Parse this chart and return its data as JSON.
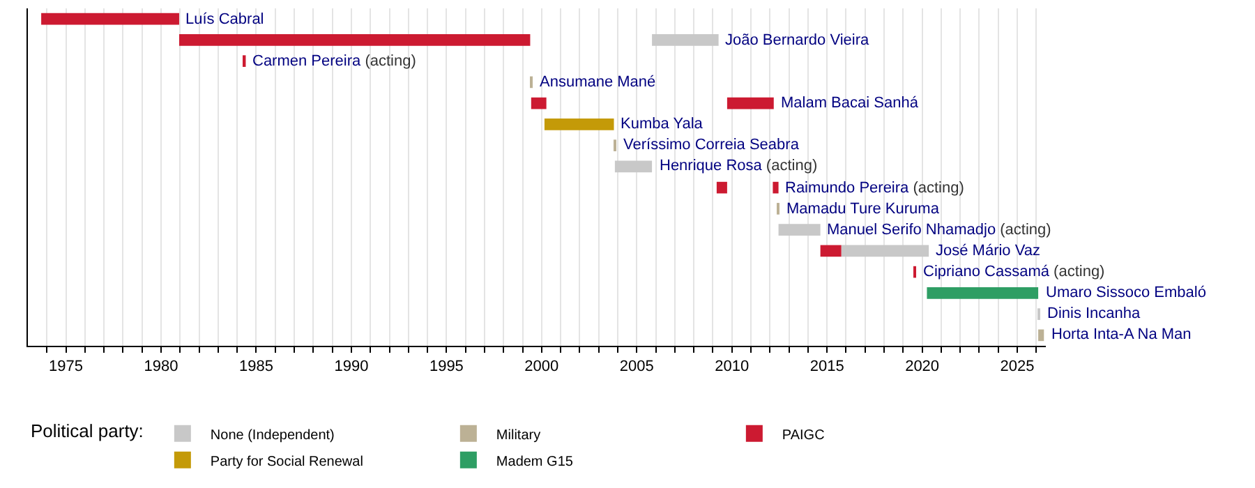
{
  "chart_data": {
    "type": "bar",
    "orientation": "horizontal",
    "categories": [
      "Luís Cabral",
      "João Bernardo Vieira",
      "Carmen Pereira (acting)",
      "Ansumane Mané",
      "Malam Bacai Sanhá",
      "Kumba Yala",
      "Veríssimo Correia Seabra",
      "Henrique Rosa (acting)",
      "Raimundo Pereira (acting)",
      "Mamadu Ture Kuruma",
      "Manuel Serifo Nhamadjo (acting)",
      "José Mário Vaz",
      "Cipriano Cassamá (acting)",
      "Umaro Sissoco Embaló",
      "Dinis Incanha",
      "Horta Inta-A Na Man"
    ],
    "series": [
      {
        "name": "None (Independent)",
        "color": "#c8c8c8",
        "base": [
          null,
          2005.8,
          null,
          null,
          null,
          null,
          null,
          2003.85,
          null,
          null,
          2012.45,
          2015.75,
          null,
          null,
          2026.1,
          null
        ],
        "values": [
          null,
          3.5,
          null,
          null,
          null,
          null,
          null,
          1.95,
          null,
          null,
          2.2,
          4.6,
          null,
          null,
          0.1,
          null
        ]
      },
      {
        "name": "Military",
        "color": "#bcb195",
        "base": [
          null,
          null,
          null,
          1999.4,
          null,
          null,
          2003.8,
          null,
          null,
          2012.4,
          null,
          null,
          null,
          null,
          null,
          2026.1
        ],
        "values": [
          null,
          null,
          null,
          0.1,
          null,
          null,
          0.1,
          null,
          null,
          0.1,
          null,
          null,
          null,
          null,
          null,
          0.3
        ]
      },
      {
        "name": "PAIGC",
        "color": "#cc1a31",
        "base": [
          1973.7,
          1980.95,
          1984.35,
          null,
          1999.45,
          null,
          null,
          null,
          2009.2,
          null,
          null,
          2014.65,
          2019.55,
          null,
          null,
          null
        ],
        "values": [
          7.25,
          18.45,
          0.1,
          null,
          0.8,
          null,
          null,
          null,
          0.55,
          null,
          null,
          1.1,
          0.1,
          null,
          null,
          null
        ]
      },
      {
        "name": "Party for Social Renewal",
        "color": "#c49a08",
        "base": [
          null,
          null,
          null,
          null,
          null,
          2000.15,
          null,
          null,
          null,
          null,
          null,
          null,
          null,
          null,
          null,
          null
        ],
        "values": [
          null,
          null,
          null,
          null,
          null,
          3.65,
          null,
          null,
          null,
          null,
          null,
          null,
          null,
          null,
          null,
          null
        ]
      },
      {
        "name": "Madem G15",
        "color": "#2e9e64",
        "base": [
          null,
          null,
          null,
          null,
          null,
          null,
          null,
          null,
          null,
          null,
          null,
          null,
          null,
          2020.25,
          null,
          null
        ],
        "values": [
          null,
          null,
          null,
          null,
          null,
          null,
          null,
          null,
          null,
          null,
          null,
          null,
          null,
          5.85,
          null,
          null
        ]
      },
      {
        "color": "#cc1a31",
        "base": [
          null,
          null,
          null,
          null,
          2009.75,
          null,
          null,
          null,
          2012.15,
          null,
          null,
          null,
          null,
          null,
          null,
          null
        ],
        "values": [
          null,
          null,
          null,
          null,
          2.45,
          null,
          null,
          null,
          0.3,
          null,
          null,
          null,
          null,
          null,
          null,
          null
        ]
      }
    ],
    "xlim": [
      1973,
      2026.5
    ],
    "xticks": [
      {
        "value": 1974,
        "label": null
      },
      1975,
      {
        "value": 1976,
        "label": null
      },
      {
        "value": 1977,
        "label": null
      },
      {
        "value": 1978,
        "label": null
      },
      {
        "value": 1979,
        "label": null
      },
      1980,
      {
        "value": 1981,
        "label": null
      },
      {
        "value": 1982,
        "label": null
      },
      {
        "value": 1983,
        "label": null
      },
      {
        "value": 1984,
        "label": null
      },
      1985,
      {
        "value": 1986,
        "label": null
      },
      {
        "value": 1987,
        "label": null
      },
      {
        "value": 1988,
        "label": null
      },
      {
        "value": 1989,
        "label": null
      },
      1990,
      {
        "value": 1991,
        "label": null
      },
      {
        "value": 1992,
        "label": null
      },
      {
        "value": 1993,
        "label": null
      },
      {
        "value": 1994,
        "label": null
      },
      1995,
      {
        "value": 1996,
        "label": null
      },
      {
        "value": 1997,
        "label": null
      },
      {
        "value": 1998,
        "label": null
      },
      {
        "value": 1999,
        "label": null
      },
      2000,
      {
        "value": 2001,
        "label": null
      },
      {
        "value": 2002,
        "label": null
      },
      {
        "value": 2003,
        "label": null
      },
      {
        "value": 2004,
        "label": null
      },
      2005,
      {
        "value": 2006,
        "label": null
      },
      {
        "value": 2007,
        "label": null
      },
      {
        "value": 2008,
        "label": null
      },
      {
        "value": 2009,
        "label": null
      },
      2010,
      {
        "value": 2011,
        "label": null
      },
      {
        "value": 2012,
        "label": null
      },
      {
        "value": 2013,
        "label": null
      },
      {
        "value": 2014,
        "label": null
      },
      2015,
      {
        "value": 2016,
        "label": null
      },
      {
        "value": 2017,
        "label": null
      },
      {
        "value": 2018,
        "label": null
      },
      {
        "value": 2019,
        "label": null
      },
      2020,
      {
        "value": 2021,
        "label": null
      },
      {
        "value": 2022,
        "label": null
      },
      {
        "value": 2023,
        "label": null
      },
      {
        "value": 2024,
        "label": null
      },
      2025,
      {
        "value": 2026,
        "label": null
      }
    ],
    "grid": "x",
    "legend": "bottom",
    "legend_title": "Political party:",
    "tick_labels": "x"
  }
}
